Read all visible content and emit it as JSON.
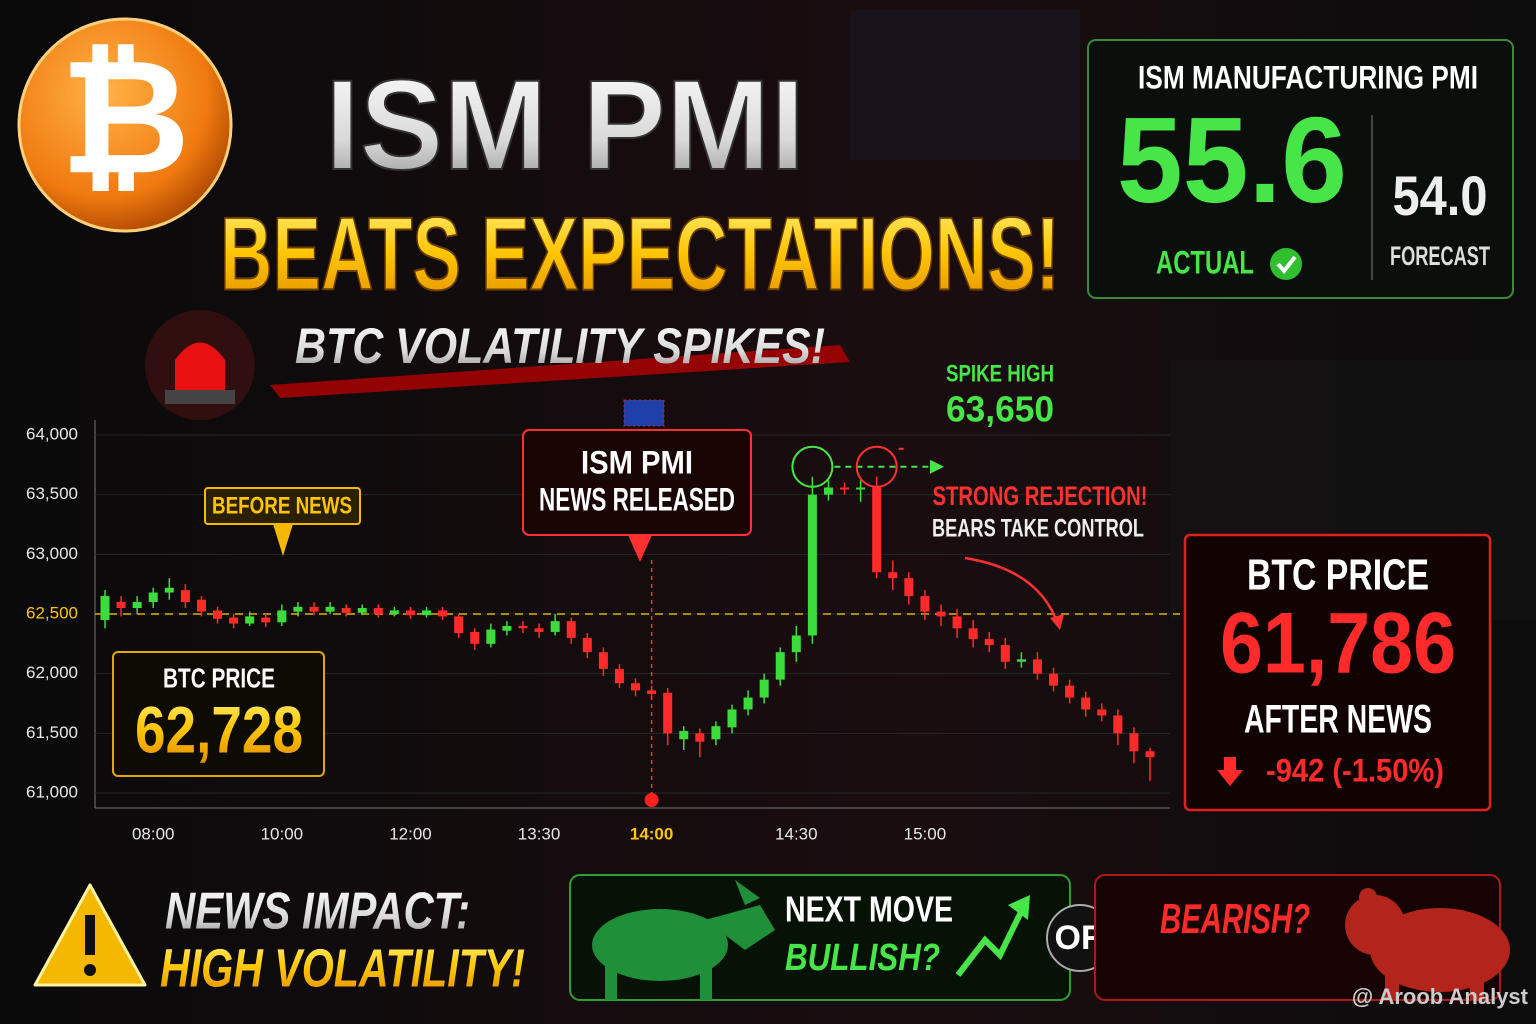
{
  "header": {
    "logo": "₿",
    "title_line1": "ISM PMI",
    "title_line2": "BEATS EXPECTATIONS!",
    "subtitle": "BTC VOLATILITY SPIKES!"
  },
  "pmi_panel": {
    "title": "ISM MANUFACTURING PMI",
    "actual": "55.6",
    "actual_label": "ACTUAL",
    "forecast": "54.0",
    "forecast_label": "FORECAST"
  },
  "chart_data": {
    "type": "candlestick",
    "categories": [
      null,
      null,
      null,
      "08:00",
      null,
      null,
      null,
      null,
      null,
      null,
      null,
      "10:00",
      null,
      null,
      null,
      null,
      null,
      null,
      null,
      "12:00",
      null,
      null,
      null,
      null,
      null,
      null,
      null,
      "13:30",
      null,
      null,
      null,
      null,
      null,
      null,
      "14:00",
      null,
      null,
      null,
      null,
      null,
      null,
      null,
      null,
      "14:30",
      null,
      null,
      null,
      null,
      null,
      null,
      null,
      "15:00",
      null,
      null,
      null,
      null,
      null,
      null,
      null,
      null,
      null,
      null,
      null,
      null,
      null,
      null
    ],
    "open": [
      62450,
      62600,
      62550,
      62600,
      62680,
      62700,
      62620,
      62530,
      62470,
      62420,
      62470,
      62430,
      62520,
      62560,
      62520,
      62550,
      62510,
      62550,
      62500,
      62530,
      62490,
      62530,
      62480,
      62350,
      62250,
      62360,
      62400,
      62380,
      62350,
      62440,
      62300,
      62180,
      62040,
      61920,
      61860,
      61840,
      61450,
      61500,
      61450,
      61550,
      61700,
      61800,
      61950,
      62180,
      62320,
      63500,
      63560,
      63550,
      63560,
      62850,
      62800,
      62650,
      62520,
      62480,
      62380,
      62290,
      62240,
      62100,
      62120,
      62000,
      61900,
      61800,
      61700,
      61650,
      61500,
      61350
    ],
    "high": [
      62700,
      62650,
      62650,
      62720,
      62800,
      62750,
      62650,
      62560,
      62500,
      62520,
      62500,
      62580,
      62600,
      62600,
      62600,
      62580,
      62580,
      62580,
      62560,
      62560,
      62560,
      62560,
      62500,
      62380,
      62420,
      62440,
      62440,
      62420,
      62500,
      62470,
      62340,
      62220,
      62080,
      61960,
      61900,
      61880,
      61560,
      61540,
      61600,
      61740,
      61860,
      62000,
      62220,
      62400,
      63650,
      63620,
      63600,
      63620,
      63650,
      62950,
      62850,
      62700,
      62580,
      62540,
      62450,
      62350,
      62300,
      62180,
      62180,
      62050,
      61950,
      61850,
      61750,
      61700,
      61550,
      61380
    ],
    "low": [
      62380,
      62480,
      62500,
      62550,
      62620,
      62550,
      62480,
      62420,
      62380,
      62400,
      62390,
      62400,
      62480,
      62490,
      62500,
      62480,
      62490,
      62470,
      62480,
      62460,
      62470,
      62450,
      62300,
      62200,
      62220,
      62320,
      62340,
      62300,
      62320,
      62250,
      62130,
      61980,
      61880,
      61810,
      61780,
      61400,
      61360,
      61300,
      61400,
      61500,
      61650,
      61750,
      61900,
      62100,
      62250,
      63450,
      63500,
      63440,
      62800,
      62700,
      62580,
      62450,
      62400,
      62300,
      62220,
      62180,
      62040,
      62050,
      61950,
      61850,
      61750,
      61640,
      61600,
      61400,
      61250,
      61100
    ],
    "close": [
      62650,
      62550,
      62600,
      62680,
      62720,
      62600,
      62520,
      62460,
      62420,
      62480,
      62430,
      62530,
      62560,
      62520,
      62560,
      62510,
      62550,
      62500,
      62530,
      62490,
      62530,
      62480,
      62340,
      62250,
      62370,
      62400,
      62380,
      62350,
      62440,
      62300,
      62180,
      62040,
      61920,
      61860,
      61830,
      61500,
      61520,
      61430,
      61560,
      61700,
      61800,
      61950,
      62180,
      62320,
      63500,
      63560,
      63550,
      63560,
      62850,
      62800,
      62650,
      62520,
      62480,
      62380,
      62290,
      62240,
      62100,
      62120,
      62000,
      61900,
      61800,
      61700,
      61650,
      61500,
      61350,
      61300
    ],
    "up_color": "#3ddc3d",
    "down_color": "#ff2a2a",
    "ylim": [
      61000,
      64000
    ],
    "yticks": [
      {
        "value": 61000,
        "label": "61,000"
      },
      {
        "value": 61500,
        "label": "61,500"
      },
      {
        "value": 62000,
        "label": "62,000"
      },
      {
        "value": 62500,
        "label": "62,500"
      },
      {
        "value": 63000,
        "label": "63,000"
      },
      {
        "value": 63500,
        "label": "63,500"
      },
      {
        "value": 64000,
        "label": "64,000"
      }
    ],
    "reference_line": 62500,
    "grid": true
  },
  "annotations": {
    "before_news": "BEFORE NEWS",
    "news_line1": "ISM PMI",
    "news_line2": "NEWS RELEASED",
    "spike_label": "SPIKE HIGH",
    "spike_value": "63,650",
    "rejection": "STRONG REJECTION!",
    "bears": "BEARS TAKE CONTROL"
  },
  "before_box": {
    "label": "BTC PRICE",
    "price": "62,728"
  },
  "after_box": {
    "label": "BTC PRICE",
    "price": "61,786",
    "caption": "AFTER NEWS",
    "change": "-942 (-1.50%)"
  },
  "footer": {
    "impact_line1": "NEWS IMPACT:",
    "impact_line2": "HIGH VOLATILITY!",
    "next_move": "NEXT MOVE",
    "bullish": "BULLISH?",
    "or": "OR",
    "bearish": "BEARISH?",
    "watermark": "@ Aroob Analyst"
  }
}
